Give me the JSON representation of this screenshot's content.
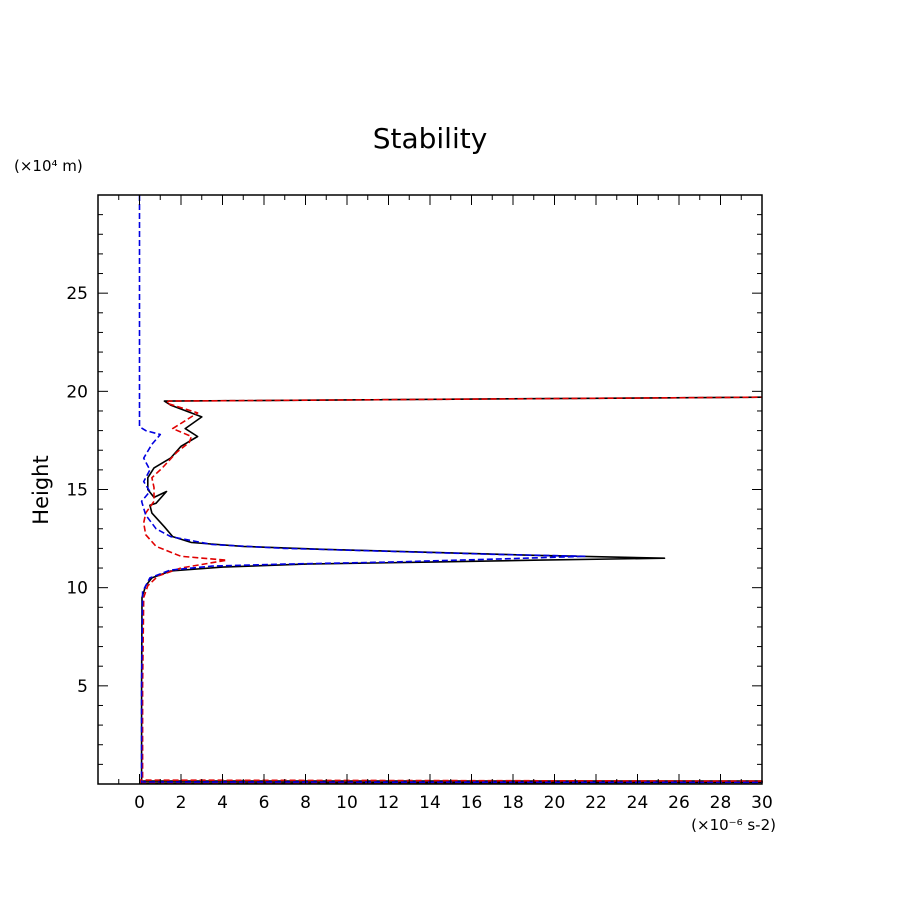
{
  "chart_data": {
    "type": "line",
    "title": "Stability",
    "xlabel": "",
    "x_unit_label": "(×10⁻⁶ s-2)",
    "ylabel": "Height",
    "y_unit_label": "(×10⁴ m)",
    "xlim": [
      -2,
      30
    ],
    "ylim": [
      0,
      30
    ],
    "x_ticks": [
      0,
      2,
      4,
      6,
      8,
      10,
      12,
      14,
      16,
      18,
      20,
      22,
      24,
      26,
      28,
      30
    ],
    "x_tick_labels": [
      "0",
      "2",
      "4",
      "6",
      "8",
      "10",
      "12",
      "14",
      "16",
      "18",
      "20",
      "22",
      "24",
      "26",
      "28",
      "30"
    ],
    "y_ticks": [
      5,
      10,
      15,
      20,
      25
    ],
    "y_tick_labels": [
      "5",
      "10",
      "15",
      "20",
      "25"
    ],
    "series": [
      {
        "name": "black",
        "color": "#000000",
        "dash": "solid",
        "points": [
          [
            0.05,
            0
          ],
          [
            0.05,
            0.15
          ],
          [
            30,
            0.15
          ],
          [
            30,
            0.08
          ],
          [
            0.1,
            0.05
          ],
          [
            0.1,
            5
          ],
          [
            0.12,
            9.5
          ],
          [
            0.3,
            10.1
          ],
          [
            0.6,
            10.5
          ],
          [
            1.5,
            10.85
          ],
          [
            4,
            11.05
          ],
          [
            8,
            11.2
          ],
          [
            14,
            11.3
          ],
          [
            19,
            11.4
          ],
          [
            25.3,
            11.5
          ],
          [
            19,
            11.65
          ],
          [
            14,
            11.8
          ],
          [
            9,
            11.95
          ],
          [
            5,
            12.1
          ],
          [
            2.5,
            12.3
          ],
          [
            1.6,
            12.6
          ],
          [
            1.2,
            13.1
          ],
          [
            0.6,
            13.8
          ],
          [
            0.5,
            14.2
          ],
          [
            0.8,
            14.3
          ],
          [
            1.3,
            14.9
          ],
          [
            0.7,
            14.6
          ],
          [
            0.4,
            15.0
          ],
          [
            0.4,
            15.6
          ],
          [
            0.7,
            16.1
          ],
          [
            1.5,
            16.6
          ],
          [
            2.0,
            17.2
          ],
          [
            2.8,
            17.7
          ],
          [
            2.2,
            18.1
          ],
          [
            3.0,
            18.7
          ],
          [
            1.5,
            19.3
          ],
          [
            1.2,
            19.5
          ],
          [
            30,
            19.7
          ]
        ]
      },
      {
        "name": "red",
        "color": "#e00000",
        "dash": "dashed",
        "points": [
          [
            0.05,
            0
          ],
          [
            0.05,
            0.2
          ],
          [
            30,
            0.15
          ],
          [
            30,
            0.1
          ],
          [
            0.15,
            0.05
          ],
          [
            0.15,
            5
          ],
          [
            0.2,
            9.5
          ],
          [
            0.4,
            10.1
          ],
          [
            0.9,
            10.6
          ],
          [
            2,
            11.0
          ],
          [
            4.2,
            11.4
          ],
          [
            2.0,
            11.6
          ],
          [
            0.8,
            12.1
          ],
          [
            0.3,
            12.7
          ],
          [
            0.2,
            13.3
          ],
          [
            0.3,
            13.8
          ],
          [
            0.7,
            14.4
          ],
          [
            0.7,
            15.1
          ],
          [
            0.6,
            15.6
          ],
          [
            1.1,
            16.1
          ],
          [
            1.8,
            16.9
          ],
          [
            2.4,
            17.4
          ],
          [
            2.5,
            17.7
          ],
          [
            1.6,
            18.1
          ],
          [
            2.8,
            18.9
          ],
          [
            1.3,
            19.4
          ],
          [
            1.4,
            19.5
          ],
          [
            30,
            19.7
          ]
        ]
      },
      {
        "name": "blue",
        "color": "#0000e0",
        "dash": "dashed",
        "points": [
          [
            0,
            30
          ],
          [
            0,
            18.2
          ],
          [
            0.3,
            18.0
          ],
          [
            1.0,
            17.8
          ],
          [
            0.6,
            17.3
          ],
          [
            0.2,
            16.6
          ],
          [
            0.5,
            16.0
          ],
          [
            0.2,
            15.4
          ],
          [
            0.5,
            14.9
          ],
          [
            0.1,
            14.4
          ],
          [
            0.3,
            13.7
          ],
          [
            0.8,
            13.0
          ],
          [
            1.5,
            12.6
          ],
          [
            3.5,
            12.2
          ],
          [
            7,
            12.0
          ],
          [
            12,
            11.85
          ],
          [
            17,
            11.7
          ],
          [
            21.5,
            11.6
          ],
          [
            17,
            11.45
          ],
          [
            12,
            11.3
          ],
          [
            7,
            11.2
          ],
          [
            3.5,
            11.1
          ],
          [
            1.5,
            10.9
          ],
          [
            0.5,
            10.5
          ],
          [
            0.15,
            9.8
          ],
          [
            0.1,
            5
          ],
          [
            0.1,
            0.1
          ],
          [
            30,
            0.08
          ]
        ]
      }
    ]
  }
}
